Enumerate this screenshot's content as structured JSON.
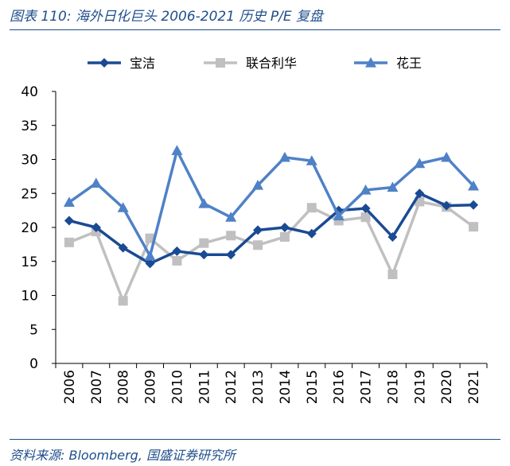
{
  "figure": {
    "title": "图表 110:  海外日化巨头 2006-2021 历史 P/E 复盘",
    "source": "资料来源:  Bloomberg, 国盛证券研究所"
  },
  "chart_data": {
    "type": "line",
    "title": "",
    "xlabel": "",
    "ylabel": "",
    "ylim": [
      0,
      40
    ],
    "yticks": [
      0,
      5,
      10,
      15,
      20,
      25,
      30,
      35,
      40
    ],
    "grid": false,
    "legend_position": "top",
    "categories": [
      "2006",
      "2007",
      "2008",
      "2009",
      "2010",
      "2011",
      "2012",
      "2013",
      "2014",
      "2015",
      "2016",
      "2017",
      "2018",
      "2019",
      "2020",
      "2021"
    ],
    "series": [
      {
        "name": "宝洁",
        "color": "#1a4a94",
        "marker": "diamond",
        "values": [
          21.0,
          20.0,
          17.0,
          14.7,
          16.5,
          16.0,
          16.0,
          19.6,
          20.0,
          19.1,
          22.5,
          22.8,
          18.6,
          25.0,
          23.2,
          23.3
        ]
      },
      {
        "name": "联合利华",
        "color": "#c0c0c0",
        "marker": "square",
        "values": [
          17.8,
          19.4,
          9.2,
          18.4,
          15.1,
          17.7,
          18.8,
          17.4,
          18.6,
          22.9,
          21.0,
          21.5,
          13.1,
          23.8,
          23.0,
          20.1
        ]
      },
      {
        "name": "花王",
        "color": "#4f81c7",
        "marker": "triangle",
        "values": [
          23.7,
          26.5,
          22.9,
          15.8,
          31.3,
          23.5,
          21.5,
          26.2,
          30.3,
          29.8,
          21.7,
          25.5,
          25.9,
          29.4,
          30.3,
          26.1
        ]
      }
    ]
  }
}
